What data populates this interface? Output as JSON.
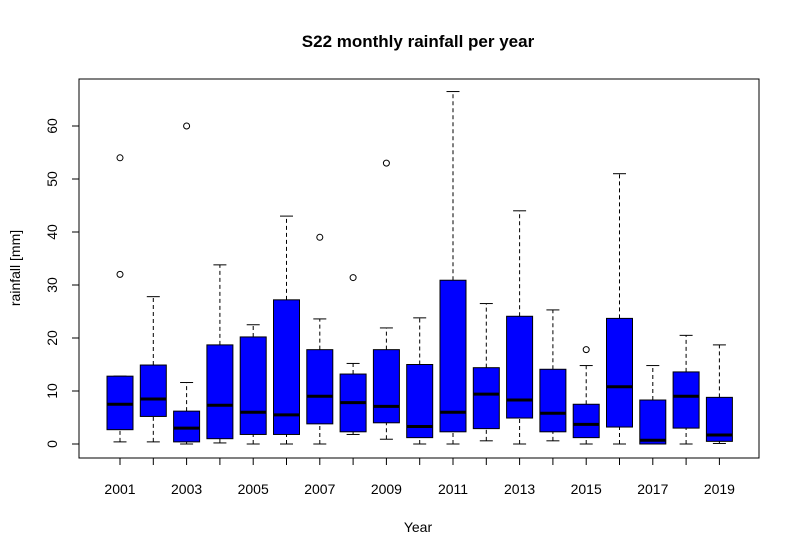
{
  "chart_data": {
    "type": "boxplot",
    "title": "S22 monthly rainfall per year",
    "xlabel": "Year",
    "ylabel": "rainfall [mm]",
    "ylim": [
      -3,
      69
    ],
    "yticks": [
      0,
      10,
      20,
      30,
      40,
      50,
      60
    ],
    "xtick_labels": [
      "2001",
      "2003",
      "2005",
      "2007",
      "2009",
      "2011",
      "2013",
      "2015",
      "2017",
      "2019"
    ],
    "box_color": "#0000ff",
    "grid": false,
    "legend": "none",
    "boxes": [
      {
        "year": "2001",
        "whisker_low": 0.4,
        "q1": 2.7,
        "median": 7.5,
        "q3": 12.8,
        "whisker_high": 12.8,
        "outliers": [
          32,
          54
        ]
      },
      {
        "year": "2002",
        "whisker_low": 0.4,
        "q1": 5.2,
        "median": 8.5,
        "q3": 14.9,
        "whisker_high": 27.8,
        "outliers": []
      },
      {
        "year": "2003",
        "whisker_low": 0.0,
        "q1": 0.4,
        "median": 3.0,
        "q3": 6.2,
        "whisker_high": 11.6,
        "outliers": [
          60
        ]
      },
      {
        "year": "2004",
        "whisker_low": 0.2,
        "q1": 1.0,
        "median": 7.3,
        "q3": 18.7,
        "whisker_high": 33.8,
        "outliers": []
      },
      {
        "year": "2005",
        "whisker_low": 0.0,
        "q1": 1.8,
        "median": 6.0,
        "q3": 20.2,
        "whisker_high": 22.5,
        "outliers": []
      },
      {
        "year": "2006",
        "whisker_low": 0.0,
        "q1": 1.8,
        "median": 5.5,
        "q3": 27.2,
        "whisker_high": 43.0,
        "outliers": []
      },
      {
        "year": "2007",
        "whisker_low": 0.0,
        "q1": 3.8,
        "median": 9.0,
        "q3": 17.8,
        "whisker_high": 23.6,
        "outliers": [
          39
        ]
      },
      {
        "year": "2008",
        "whisker_low": 1.8,
        "q1": 2.3,
        "median": 7.8,
        "q3": 13.2,
        "whisker_high": 15.2,
        "outliers": [
          31.4
        ]
      },
      {
        "year": "2009",
        "whisker_low": 0.9,
        "q1": 4.0,
        "median": 7.1,
        "q3": 17.8,
        "whisker_high": 21.9,
        "outliers": [
          53
        ]
      },
      {
        "year": "2010",
        "whisker_low": 0.0,
        "q1": 1.2,
        "median": 3.3,
        "q3": 15.0,
        "whisker_high": 23.8,
        "outliers": []
      },
      {
        "year": "2011",
        "whisker_low": 0.0,
        "q1": 2.3,
        "median": 6.0,
        "q3": 30.9,
        "whisker_high": 66.5,
        "outliers": []
      },
      {
        "year": "2012",
        "whisker_low": 0.6,
        "q1": 2.9,
        "median": 9.4,
        "q3": 14.4,
        "whisker_high": 26.5,
        "outliers": []
      },
      {
        "year": "2013",
        "whisker_low": 0.0,
        "q1": 4.9,
        "median": 8.3,
        "q3": 24.1,
        "whisker_high": 44.0,
        "outliers": []
      },
      {
        "year": "2014",
        "whisker_low": 0.6,
        "q1": 2.3,
        "median": 5.8,
        "q3": 14.1,
        "whisker_high": 25.3,
        "outliers": []
      },
      {
        "year": "2015",
        "whisker_low": 0.0,
        "q1": 1.2,
        "median": 3.7,
        "q3": 7.5,
        "whisker_high": 14.8,
        "outliers": [
          17.8
        ]
      },
      {
        "year": "2016",
        "whisker_low": 0.0,
        "q1": 3.2,
        "median": 10.8,
        "q3": 23.7,
        "whisker_high": 51.0,
        "outliers": []
      },
      {
        "year": "2017",
        "whisker_low": 0.0,
        "q1": 0.0,
        "median": 0.7,
        "q3": 8.3,
        "whisker_high": 14.8,
        "outliers": []
      },
      {
        "year": "2018",
        "whisker_low": 0.0,
        "q1": 3.0,
        "median": 9.0,
        "q3": 13.6,
        "whisker_high": 20.5,
        "outliers": []
      },
      {
        "year": "2019",
        "whisker_low": 0.1,
        "q1": 0.5,
        "median": 1.7,
        "q3": 8.8,
        "whisker_high": 18.7,
        "outliers": []
      }
    ]
  }
}
